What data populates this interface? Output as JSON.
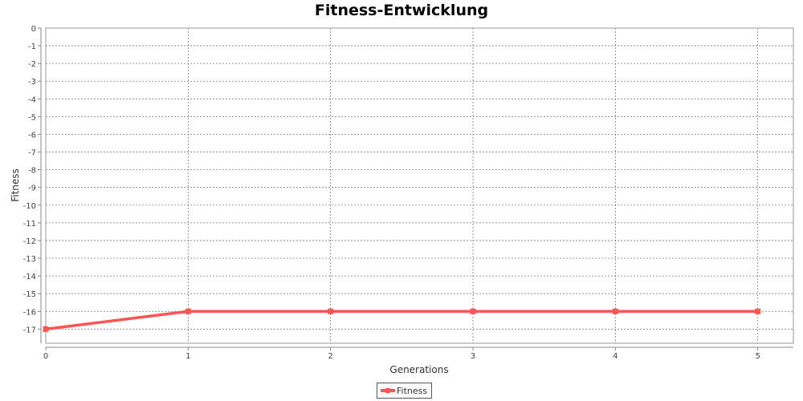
{
  "chart_data": {
    "type": "line",
    "title": "Fitness-Entwicklung",
    "xlabel": "Generations",
    "ylabel": "Fitness",
    "x": [
      0,
      1,
      2,
      3,
      4,
      5
    ],
    "xlim": [
      0,
      5.25
    ],
    "ylim": [
      -17.8,
      0
    ],
    "x_ticks": [
      0,
      1,
      2,
      3,
      4,
      5
    ],
    "y_ticks": [
      0,
      -1,
      -2,
      -3,
      -4,
      -5,
      -6,
      -7,
      -8,
      -9,
      -10,
      -11,
      -12,
      -13,
      -14,
      -15,
      -16,
      -17
    ],
    "grid": true,
    "legend_position": "bottom-center",
    "series": [
      {
        "name": "Fitness",
        "color": "#ff5555",
        "values": [
          -17,
          -16,
          -16,
          -16,
          -16,
          -16
        ]
      }
    ]
  }
}
